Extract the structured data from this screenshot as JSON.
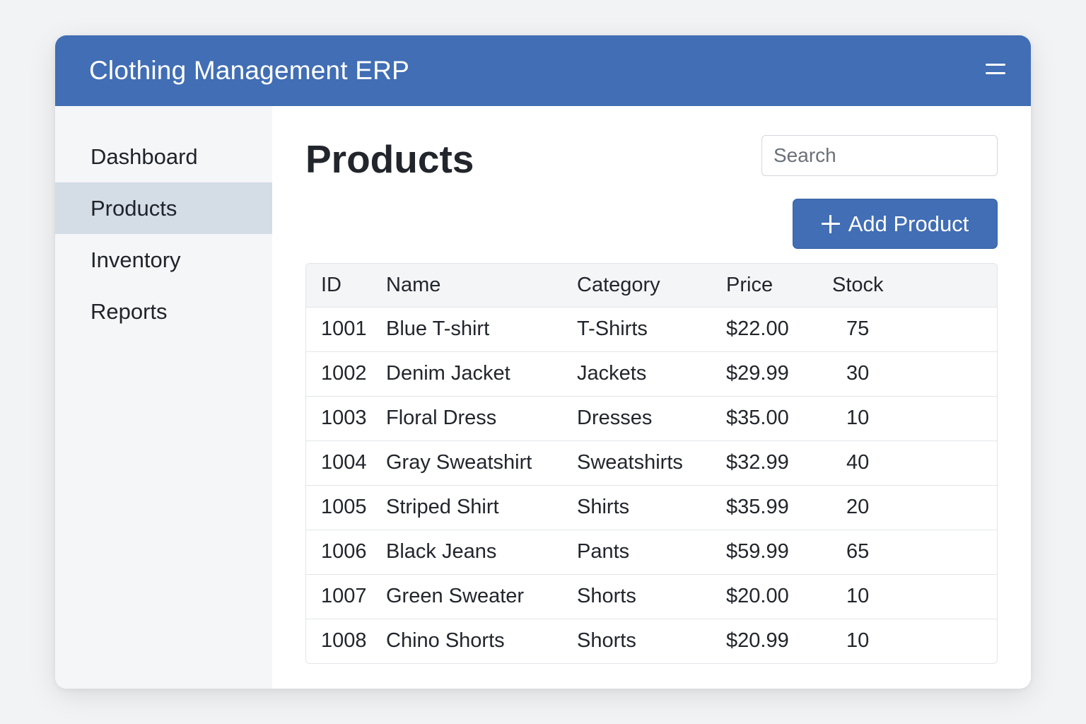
{
  "header": {
    "title": "Clothing Management ERP",
    "menu_icon": "menu-icon"
  },
  "sidebar": {
    "items": [
      {
        "label": "Dashboard",
        "active": false
      },
      {
        "label": "Products",
        "active": true
      },
      {
        "label": "Inventory",
        "active": false
      },
      {
        "label": "Reports",
        "active": false
      }
    ]
  },
  "main": {
    "title": "Products",
    "search": {
      "placeholder": "Search",
      "value": ""
    },
    "add_button": {
      "label": "Add Product",
      "icon": "plus-icon"
    }
  },
  "table": {
    "columns": [
      "ID",
      "Name",
      "Category",
      "Price",
      "Stock"
    ],
    "rows": [
      [
        "1001",
        "Blue T-shirt",
        "T-Shirts",
        "$22.00",
        "75"
      ],
      [
        "1002",
        "Denim Jacket",
        "Jackets",
        "$29.99",
        "30"
      ],
      [
        "1003",
        "Floral Dress",
        "Dresses",
        "$35.00",
        "10"
      ],
      [
        "1004",
        "Gray Sweatshirt",
        "Sweatshirts",
        "$32.99",
        "40"
      ],
      [
        "1005",
        "Striped Shirt",
        "Shirts",
        "$35.99",
        "20"
      ],
      [
        "1006",
        "Black Jeans",
        "Pants",
        "$59.99",
        "65"
      ],
      [
        "1007",
        "Green Sweater",
        "Shorts",
        "$20.00",
        "10"
      ],
      [
        "1008",
        "Chino Shorts",
        "Shorts",
        "$20.99",
        "10"
      ]
    ]
  },
  "colors": {
    "brand": "#416eb4",
    "sidebar_bg": "#f5f6f8",
    "active_nav_bg": "#d4dce6"
  }
}
